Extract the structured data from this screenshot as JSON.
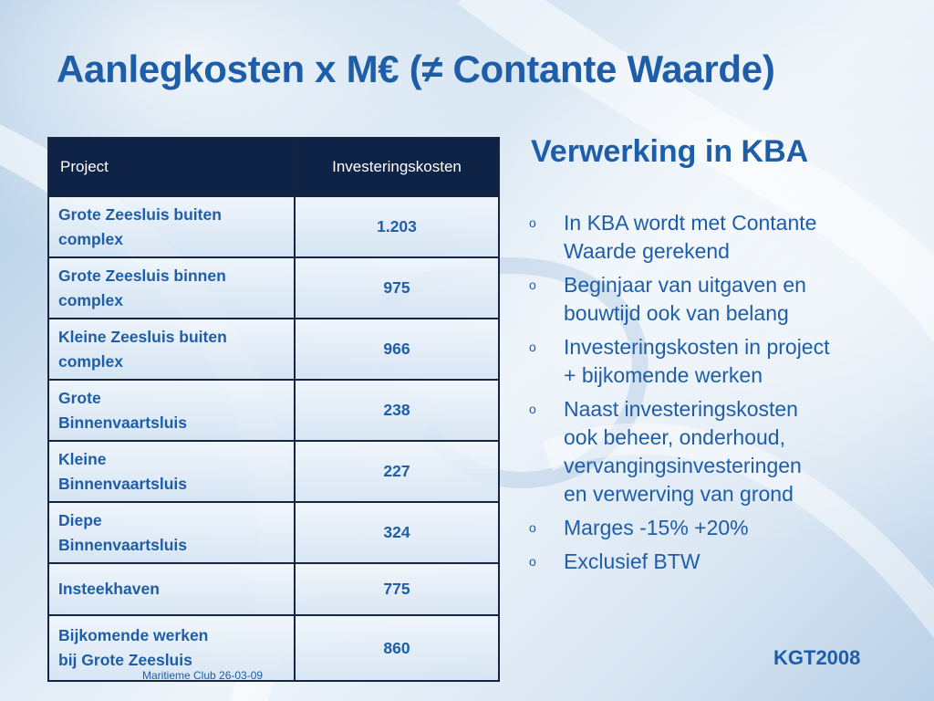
{
  "title": "Aanlegkosten x M€ (≠ Contante Waarde)",
  "table": {
    "headers": [
      "Project",
      "Investeringskosten"
    ],
    "rows": [
      {
        "project": [
          "Grote Zeesluis buiten",
          "complex"
        ],
        "cost": "1.203"
      },
      {
        "project": [
          "Grote Zeesluis binnen",
          "complex"
        ],
        "cost": "975"
      },
      {
        "project": [
          "Kleine Zeesluis buiten",
          "complex"
        ],
        "cost": "966"
      },
      {
        "project": [
          "Grote",
          "Binnenvaartsluis"
        ],
        "cost": "238"
      },
      {
        "project": [
          "Kleine",
          "Binnenvaartsluis"
        ],
        "cost": "227"
      },
      {
        "project": [
          "Diepe",
          "Binnenvaartsluis"
        ],
        "cost": "324"
      },
      {
        "project": [
          "Insteekhaven"
        ],
        "cost": "775"
      },
      {
        "project": [
          "Bijkomende werken",
          "bij Grote Zeesluis"
        ],
        "cost": "860"
      }
    ]
  },
  "kba": {
    "heading": "Verwerking in KBA",
    "bullet_marker": "o",
    "bullets": [
      [
        "In KBA wordt met Contante",
        "Waarde gerekend"
      ],
      [
        "Beginjaar van uitgaven en",
        "bouwtijd ook van belang"
      ],
      [
        "Investeringskosten in project",
        "+ bijkomende werken"
      ],
      [
        "Naast investeringskosten",
        "ook beheer, onderhoud,",
        "vervangingsinvesteringen",
        "en verwerving van grond"
      ],
      [
        "Marges -15% +20%"
      ],
      [
        "Exclusief BTW"
      ]
    ]
  },
  "badge": "KGT2008",
  "footer": "Maritieme Club 26-03-09",
  "colors": {
    "accent": "#1e5ea8",
    "header_bg": "#0f2346"
  }
}
